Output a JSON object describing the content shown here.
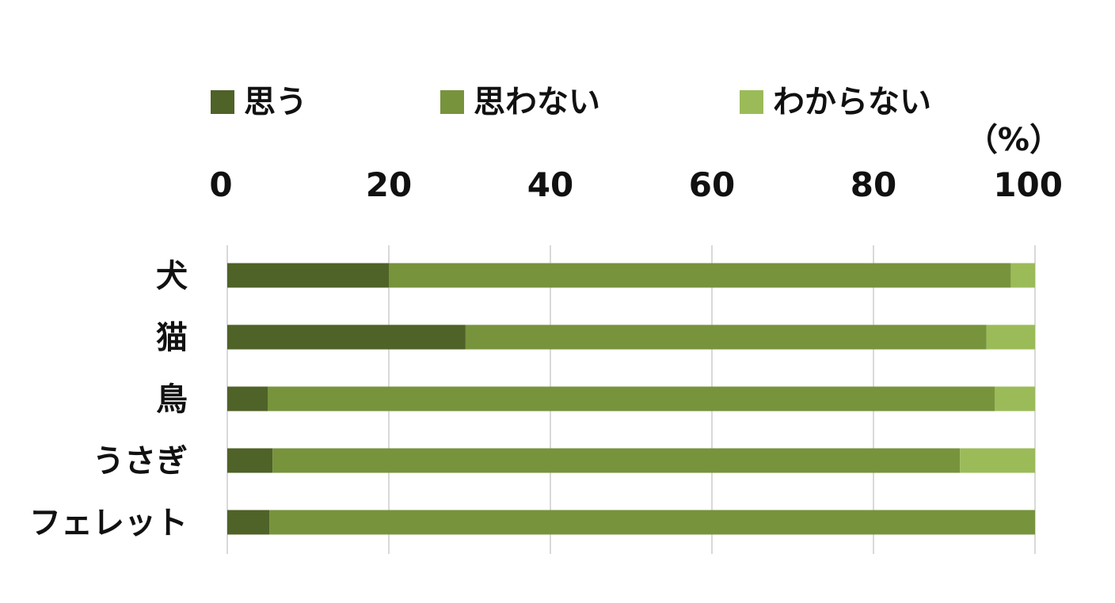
{
  "chart_data": {
    "type": "bar",
    "orientation": "horizontal",
    "stacked": true,
    "categories": [
      "犬",
      "猫",
      "鳥",
      "うさぎ",
      "フェレット"
    ],
    "series": [
      {
        "name": "思う",
        "color": "#4f6228",
        "values": [
          20,
          29.5,
          5,
          5.6,
          5.2
        ]
      },
      {
        "name": "思わない",
        "color": "#77933c",
        "values": [
          77,
          64.5,
          90,
          85.1,
          94.8
        ]
      },
      {
        "name": "わからない",
        "color": "#9bbb59",
        "values": [
          3,
          6,
          5,
          9.3,
          0
        ]
      }
    ],
    "xlim": [
      0,
      100
    ],
    "xticks": [
      "0",
      "20",
      "40",
      "60",
      "80",
      "100"
    ],
    "unit": "（%）",
    "axis_position": "top",
    "legend_position": "top",
    "grid": true,
    "gridline_color": "#d9d9d9"
  }
}
